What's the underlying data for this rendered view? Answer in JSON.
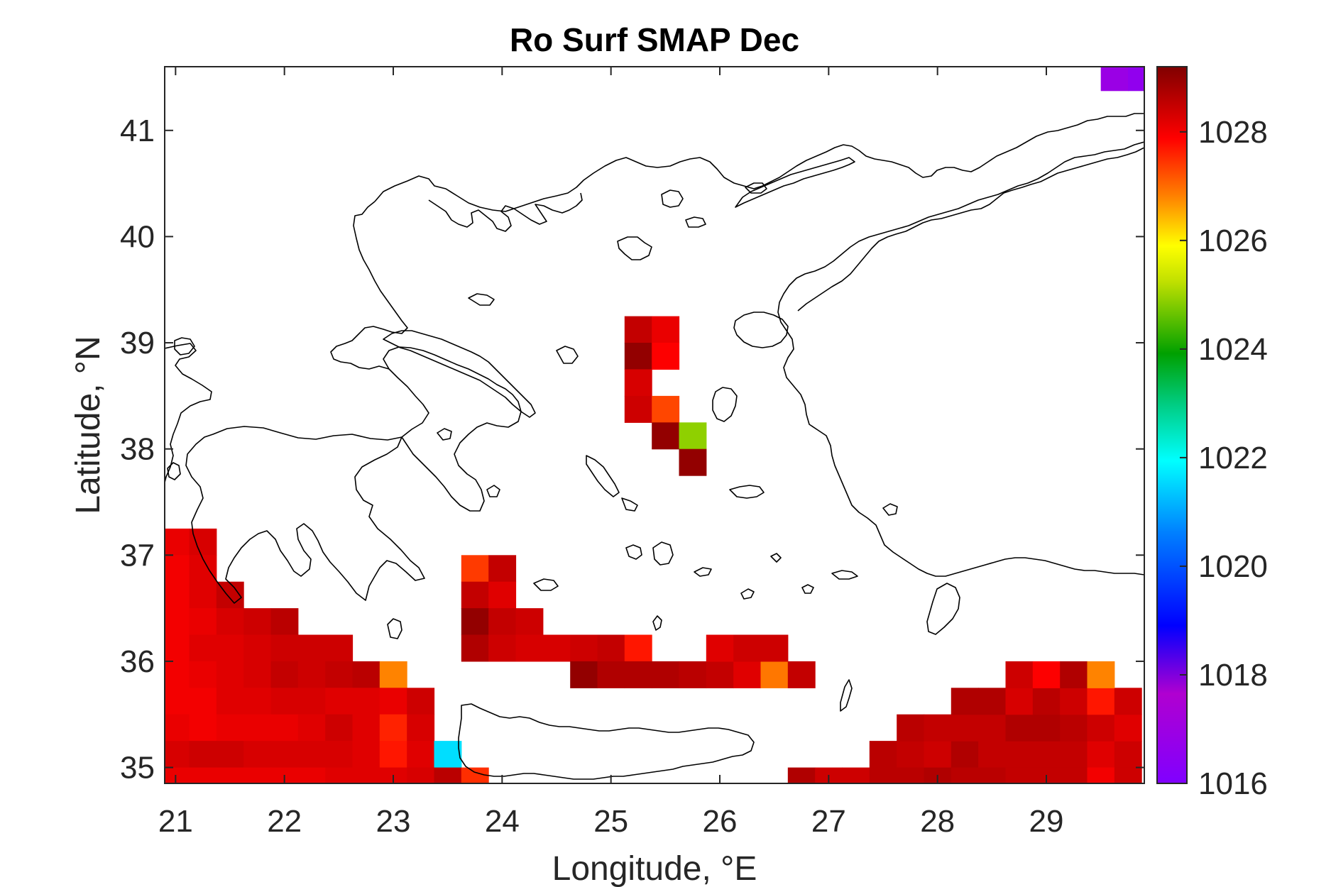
{
  "chart_data": {
    "type": "heatmap",
    "title": "Ro Surf SMAP Dec",
    "xlabel": "Longitude, °E",
    "ylabel": "Latitude, °N",
    "xlim": [
      20.9,
      29.9
    ],
    "ylim": [
      34.85,
      41.6
    ],
    "xticks": [
      21,
      22,
      23,
      24,
      25,
      26,
      27,
      28,
      29
    ],
    "yticks": [
      35,
      36,
      37,
      38,
      39,
      40,
      41
    ],
    "colorbar": {
      "range": [
        1016,
        1029.2
      ],
      "ticks": [
        1016,
        1018,
        1020,
        1022,
        1024,
        1026,
        1028
      ],
      "colormap": "jet"
    },
    "grid_resolution_deg": 0.25,
    "cell_note": "Each cell is [lon_center, lat_center, density]",
    "cells": [
      [
        21.0,
        37.125,
        1028.1
      ],
      [
        21.25,
        37.125,
        1028.3
      ],
      [
        21.0,
        36.875,
        1028.0
      ],
      [
        21.25,
        36.875,
        1028.2
      ],
      [
        21.0,
        36.625,
        1028.0
      ],
      [
        21.25,
        36.625,
        1028.2
      ],
      [
        21.5,
        36.625,
        1028.5
      ],
      [
        21.0,
        36.375,
        1028.0
      ],
      [
        21.25,
        36.375,
        1028.1
      ],
      [
        21.5,
        36.375,
        1028.3
      ],
      [
        21.75,
        36.375,
        1028.4
      ],
      [
        22.0,
        36.375,
        1028.6
      ],
      [
        21.0,
        36.125,
        1028.0
      ],
      [
        21.25,
        36.125,
        1028.2
      ],
      [
        21.5,
        36.125,
        1028.2
      ],
      [
        21.75,
        36.125,
        1028.3
      ],
      [
        22.0,
        36.125,
        1028.4
      ],
      [
        22.25,
        36.125,
        1028.4
      ],
      [
        22.5,
        36.125,
        1028.4
      ],
      [
        21.0,
        35.875,
        1028.0
      ],
      [
        21.25,
        35.875,
        1028.1
      ],
      [
        21.5,
        35.875,
        1028.2
      ],
      [
        21.75,
        35.875,
        1028.3
      ],
      [
        22.0,
        35.875,
        1028.5
      ],
      [
        22.25,
        35.875,
        1028.4
      ],
      [
        22.5,
        35.875,
        1028.5
      ],
      [
        22.75,
        35.875,
        1028.6
      ],
      [
        23.0,
        35.875,
        1026.8
      ],
      [
        21.0,
        35.625,
        1028.0
      ],
      [
        21.25,
        35.625,
        1028.0
      ],
      [
        21.5,
        35.625,
        1028.2
      ],
      [
        21.75,
        35.625,
        1028.2
      ],
      [
        22.0,
        35.625,
        1028.3
      ],
      [
        22.25,
        35.625,
        1028.3
      ],
      [
        22.5,
        35.625,
        1028.2
      ],
      [
        22.75,
        35.625,
        1028.2
      ],
      [
        23.0,
        35.625,
        1028.1
      ],
      [
        23.25,
        35.625,
        1028.4
      ],
      [
        21.0,
        35.375,
        1028.1
      ],
      [
        21.25,
        35.375,
        1028.0
      ],
      [
        21.5,
        35.375,
        1028.1
      ],
      [
        21.75,
        35.375,
        1028.1
      ],
      [
        22.0,
        35.375,
        1028.1
      ],
      [
        22.25,
        35.375,
        1028.2
      ],
      [
        22.5,
        35.375,
        1028.4
      ],
      [
        22.75,
        35.375,
        1028.2
      ],
      [
        23.0,
        35.375,
        1027.6
      ],
      [
        23.25,
        35.375,
        1028.3
      ],
      [
        21.0,
        35.125,
        1028.3
      ],
      [
        21.25,
        35.125,
        1028.4
      ],
      [
        21.5,
        35.125,
        1028.4
      ],
      [
        21.75,
        35.125,
        1028.3
      ],
      [
        22.0,
        35.125,
        1028.3
      ],
      [
        22.25,
        35.125,
        1028.3
      ],
      [
        22.5,
        35.125,
        1028.3
      ],
      [
        22.75,
        35.125,
        1028.2
      ],
      [
        23.0,
        35.125,
        1027.7
      ],
      [
        23.25,
        35.125,
        1028.2
      ],
      [
        23.5,
        35.125,
        1021.6
      ],
      [
        21.0,
        34.875,
        1028.1
      ],
      [
        21.25,
        34.875,
        1028.1
      ],
      [
        21.5,
        34.875,
        1028.1
      ],
      [
        21.75,
        34.875,
        1028.1
      ],
      [
        22.0,
        34.875,
        1028.1
      ],
      [
        22.25,
        34.875,
        1028.1
      ],
      [
        22.5,
        34.875,
        1028.2
      ],
      [
        22.75,
        34.875,
        1028.2
      ],
      [
        23.0,
        34.875,
        1028.2
      ],
      [
        23.25,
        34.875,
        1028.3
      ],
      [
        23.5,
        34.875,
        1028.6
      ],
      [
        23.75,
        34.875,
        1027.5
      ],
      [
        23.75,
        36.875,
        1027.4
      ],
      [
        24.0,
        36.875,
        1028.5
      ],
      [
        23.75,
        36.625,
        1028.5
      ],
      [
        24.0,
        36.625,
        1028.2
      ],
      [
        23.75,
        36.375,
        1029.0
      ],
      [
        24.0,
        36.375,
        1028.5
      ],
      [
        24.25,
        36.375,
        1028.4
      ],
      [
        23.75,
        36.125,
        1028.7
      ],
      [
        24.0,
        36.125,
        1028.4
      ],
      [
        24.25,
        36.125,
        1028.3
      ],
      [
        24.5,
        36.125,
        1028.3
      ],
      [
        24.75,
        36.125,
        1028.4
      ],
      [
        25.0,
        36.125,
        1028.5
      ],
      [
        25.25,
        36.125,
        1027.7
      ],
      [
        24.75,
        35.875,
        1029.0
      ],
      [
        25.0,
        35.875,
        1028.7
      ],
      [
        25.25,
        35.875,
        1028.7
      ],
      [
        25.5,
        35.875,
        1028.7
      ],
      [
        25.75,
        35.875,
        1028.6
      ],
      [
        26.0,
        35.875,
        1028.5
      ],
      [
        26.25,
        35.875,
        1028.2
      ],
      [
        26.5,
        35.875,
        1026.9
      ],
      [
        26.75,
        35.875,
        1028.5
      ],
      [
        26.0,
        36.125,
        1028.2
      ],
      [
        26.25,
        36.125,
        1028.4
      ],
      [
        26.5,
        36.125,
        1028.4
      ],
      [
        25.25,
        39.125,
        1028.5
      ],
      [
        25.5,
        39.125,
        1028.1
      ],
      [
        25.25,
        38.875,
        1029.0
      ],
      [
        25.5,
        38.875,
        1027.9
      ],
      [
        25.25,
        38.625,
        1028.3
      ],
      [
        25.25,
        38.375,
        1028.4
      ],
      [
        25.5,
        38.375,
        1027.3
      ],
      [
        25.5,
        38.125,
        1029.0
      ],
      [
        25.75,
        38.125,
        1024.9
      ],
      [
        25.75,
        37.875,
        1029.0
      ],
      [
        26.75,
        34.875,
        1028.7
      ],
      [
        27.0,
        34.875,
        1028.4
      ],
      [
        27.25,
        34.875,
        1028.4
      ],
      [
        27.5,
        35.125,
        1028.6
      ],
      [
        27.75,
        35.125,
        1028.5
      ],
      [
        28.0,
        35.125,
        1028.4
      ],
      [
        28.25,
        35.125,
        1028.7
      ],
      [
        28.5,
        35.125,
        1028.5
      ],
      [
        28.75,
        35.125,
        1028.5
      ],
      [
        29.0,
        35.125,
        1028.5
      ],
      [
        29.25,
        35.125,
        1028.5
      ],
      [
        29.5,
        35.125,
        1028.2
      ],
      [
        29.75,
        35.125,
        1028.4
      ],
      [
        27.5,
        34.875,
        1028.6
      ],
      [
        27.75,
        34.875,
        1028.6
      ],
      [
        28.0,
        34.875,
        1028.7
      ],
      [
        28.25,
        34.875,
        1028.6
      ],
      [
        28.5,
        34.875,
        1028.6
      ],
      [
        28.75,
        34.875,
        1028.5
      ],
      [
        29.0,
        34.875,
        1028.5
      ],
      [
        29.25,
        34.875,
        1028.5
      ],
      [
        29.5,
        34.875,
        1028.0
      ],
      [
        29.75,
        34.875,
        1028.4
      ],
      [
        27.75,
        35.375,
        1028.6
      ],
      [
        28.0,
        35.375,
        1028.5
      ],
      [
        28.25,
        35.375,
        1028.5
      ],
      [
        28.5,
        35.375,
        1028.5
      ],
      [
        28.75,
        35.375,
        1028.7
      ],
      [
        29.0,
        35.375,
        1028.7
      ],
      [
        29.25,
        35.375,
        1028.6
      ],
      [
        29.5,
        35.375,
        1028.4
      ],
      [
        29.75,
        35.375,
        1028.2
      ],
      [
        28.25,
        35.625,
        1028.7
      ],
      [
        28.5,
        35.625,
        1028.7
      ],
      [
        28.75,
        35.625,
        1028.3
      ],
      [
        29.0,
        35.625,
        1028.6
      ],
      [
        29.25,
        35.625,
        1028.4
      ],
      [
        29.5,
        35.625,
        1027.7
      ],
      [
        29.75,
        35.625,
        1028.4
      ],
      [
        28.75,
        35.875,
        1028.4
      ],
      [
        29.0,
        35.875,
        1027.9
      ],
      [
        29.25,
        35.875,
        1028.7
      ],
      [
        29.5,
        35.875,
        1026.8
      ],
      [
        29.625,
        41.5,
        1016.9
      ],
      [
        29.875,
        41.5,
        1016.6
      ]
    ]
  }
}
